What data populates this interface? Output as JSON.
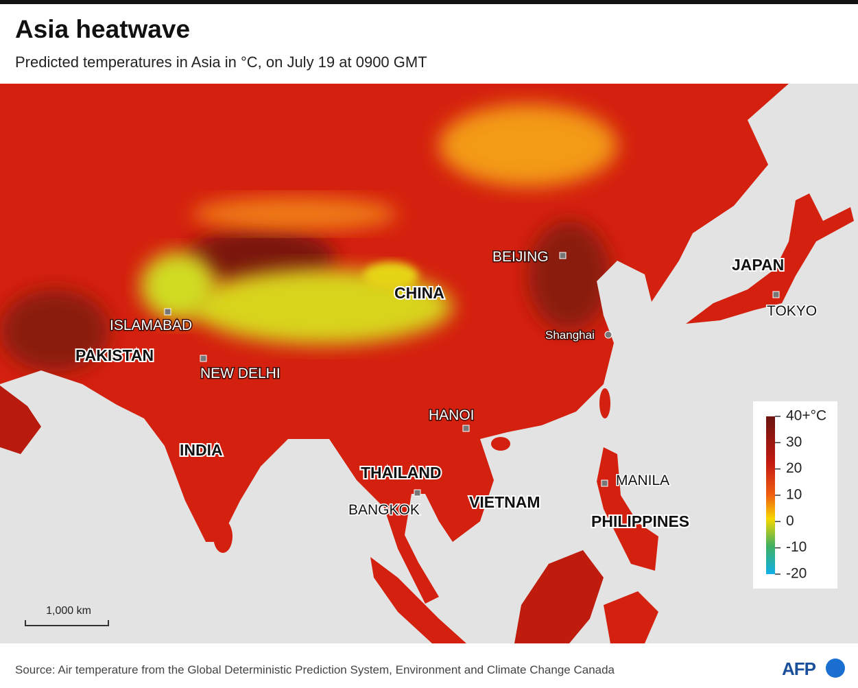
{
  "header": {
    "title": "Asia heatwave",
    "subtitle": "Predicted temperatures in Asia in °C, on July 19 at 0900 GMT"
  },
  "map": {
    "countries": [
      "CHINA",
      "PAKISTAN",
      "INDIA",
      "THAILAND",
      "VIETNAM",
      "PHILIPPINES",
      "JAPAN"
    ],
    "cities": [
      "BEIJING",
      "ISLAMABAD",
      "NEW DELHI",
      "Shanghai",
      "HANOI",
      "BANGKOK",
      "MANILA",
      "TOKYO"
    ]
  },
  "legend": {
    "ticks": [
      {
        "value": 40,
        "label": "40+°C"
      },
      30,
      20,
      10,
      0,
      -10,
      -20
    ]
  },
  "scale_bar": "1,000 km",
  "footer": {
    "source": "Source: Air temperature from the Global Deterministic Prediction System, Environment and Climate Change Canada",
    "logo": "AFP"
  }
}
